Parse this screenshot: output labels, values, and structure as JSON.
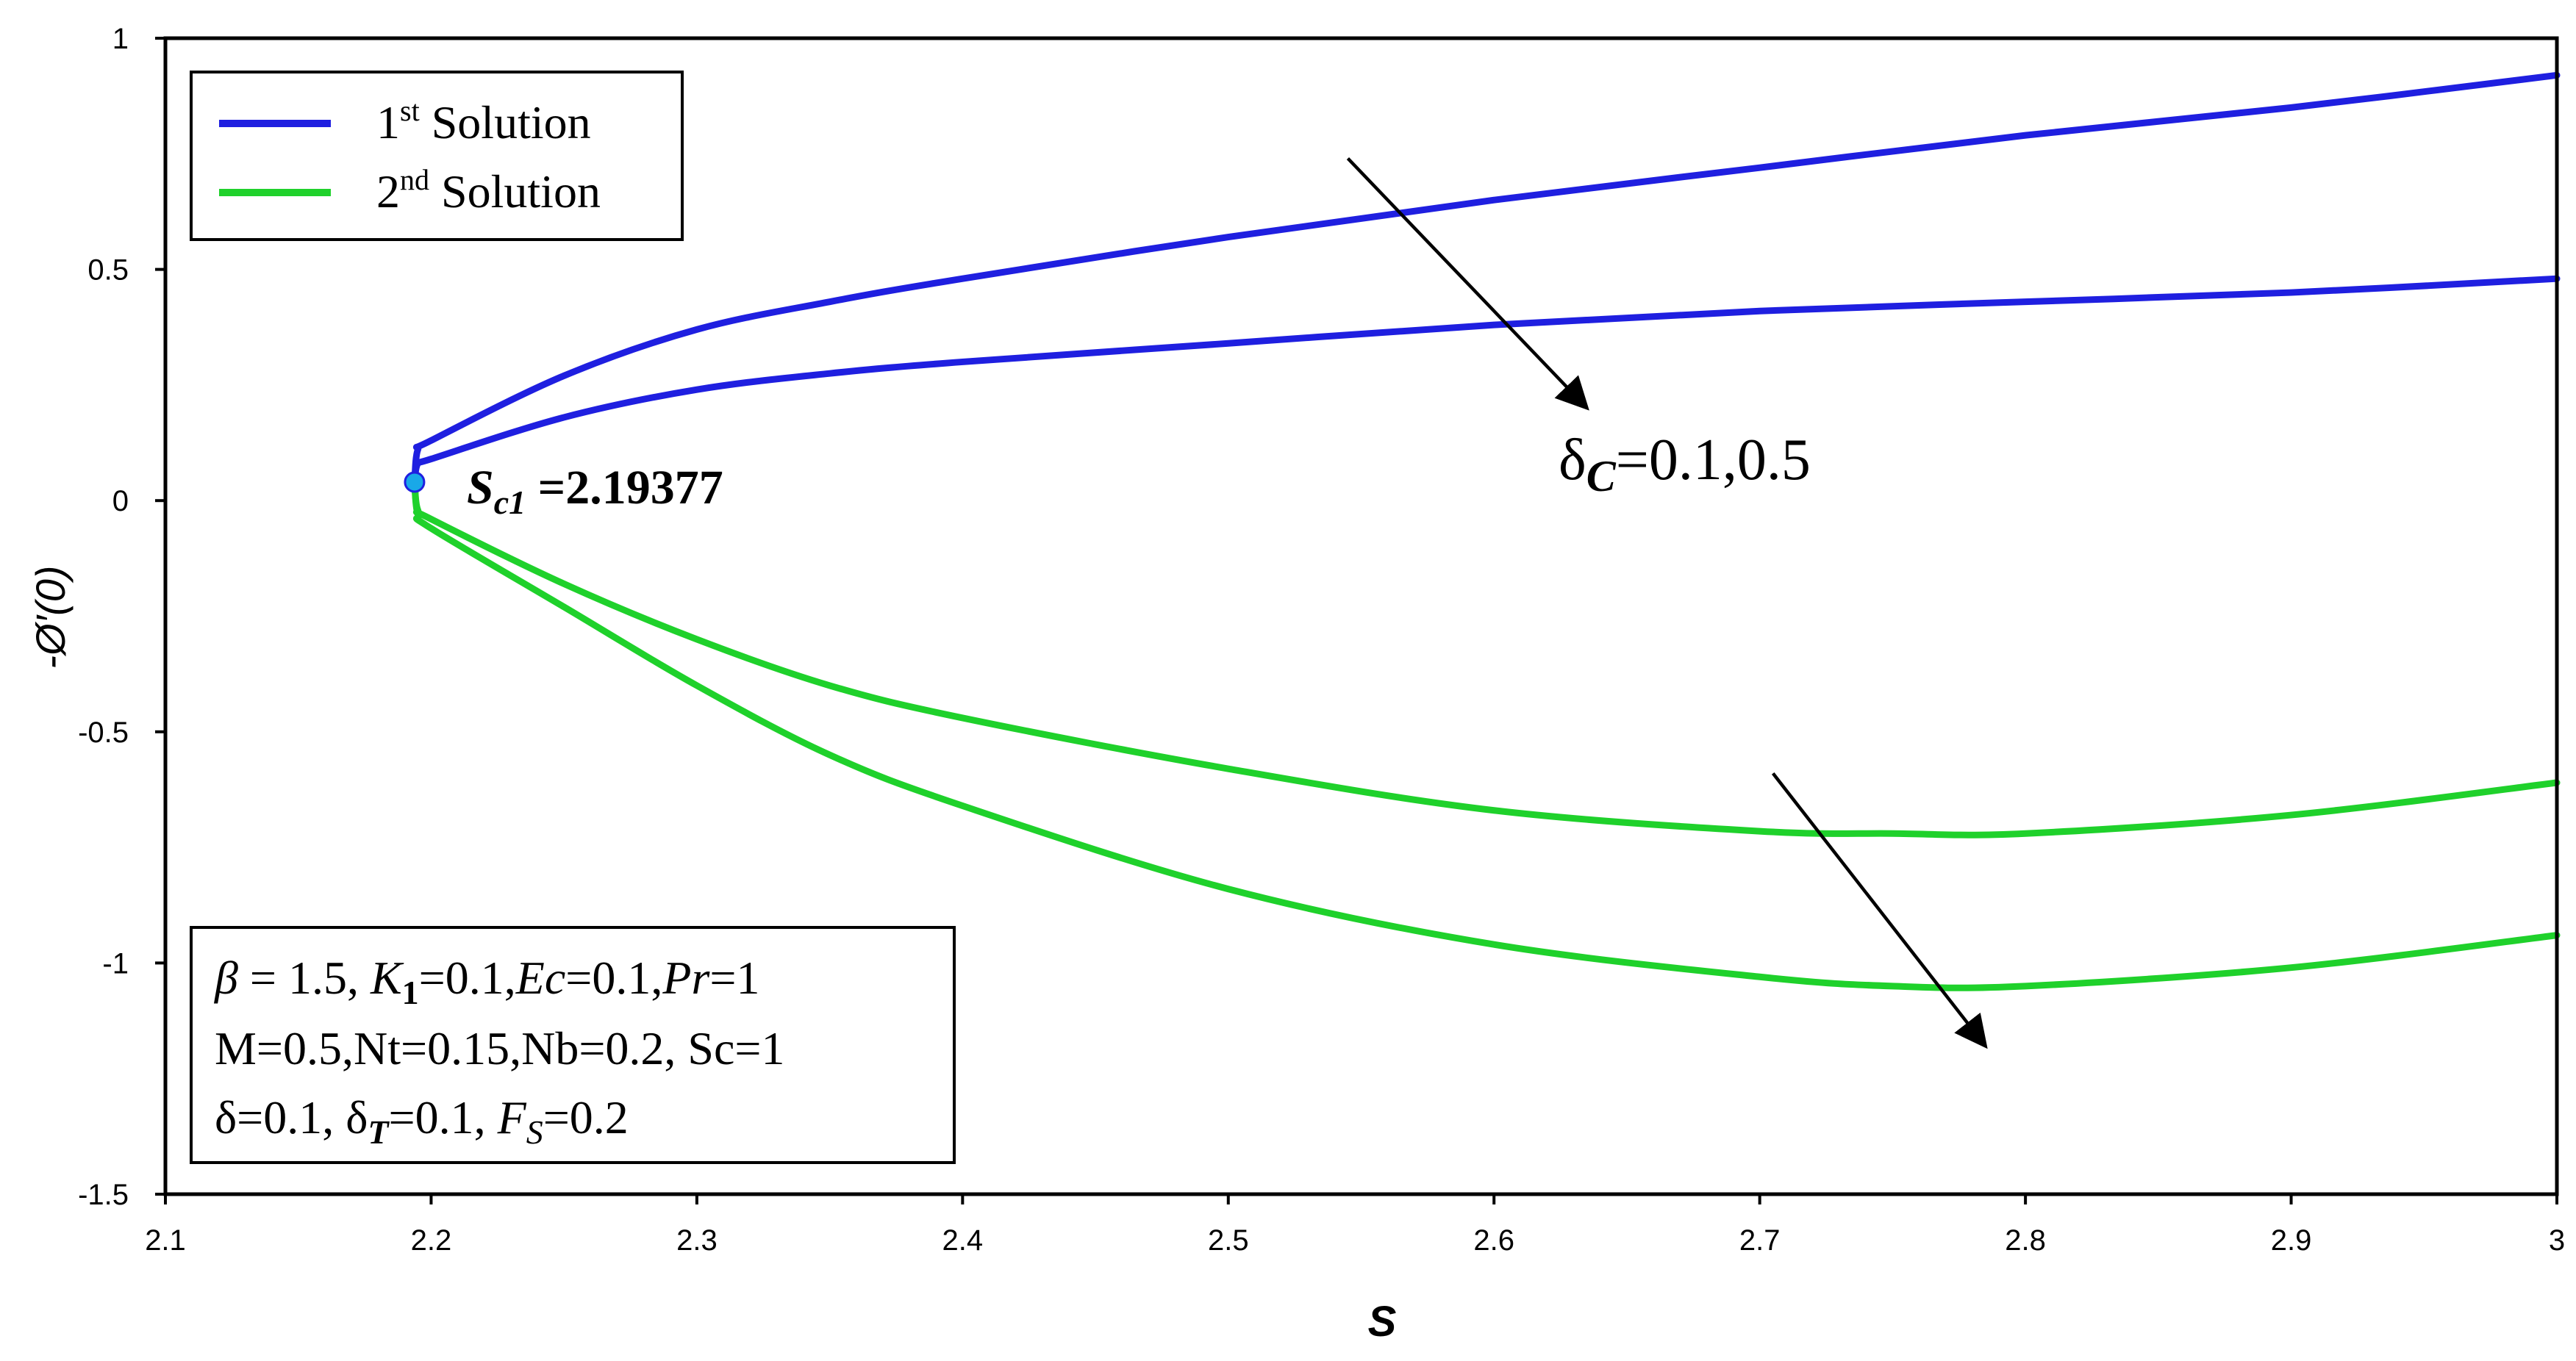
{
  "chart_data": {
    "type": "line",
    "title": "",
    "xlabel": "S",
    "ylabel": "-Ø′(0)",
    "xlim": [
      2.1,
      3.0
    ],
    "ylim": [
      -1.5,
      1.0
    ],
    "x_ticks": [
      "2.1",
      "2.2",
      "2.3",
      "2.4",
      "2.5",
      "2.6",
      "2.7",
      "2.8",
      "2.9",
      "3"
    ],
    "y_ticks": [
      "1",
      "0.5",
      "0",
      "-0.5",
      "-1",
      "-1.5"
    ],
    "grid": false,
    "legend_position": "top-left",
    "colors": {
      "first": "#1f1fe0",
      "second": "#1fd12b",
      "critical_point": "#19a8e8"
    },
    "legend": [
      {
        "base": "1",
        "sup": "st",
        "rest": " Solution",
        "color": "#1f1fe0"
      },
      {
        "base": "2",
        "sup": "nd",
        "rest": " Solution",
        "color": "#1fd12b"
      }
    ],
    "series": [
      {
        "solution": "1st",
        "delta_c": "0.1",
        "color": "#1f1fe0",
        "x": [
          2.19377,
          2.195,
          2.2,
          2.25,
          2.3,
          2.35,
          2.4,
          2.5,
          2.6,
          2.7,
          2.8,
          2.9,
          3.0
        ],
        "y": [
          0.04,
          0.11,
          0.13,
          0.27,
          0.37,
          0.43,
          0.48,
          0.57,
          0.65,
          0.72,
          0.79,
          0.85,
          0.92
        ]
      },
      {
        "solution": "1st",
        "delta_c": "0.5",
        "color": "#1f1fe0",
        "x": [
          2.19377,
          2.195,
          2.2,
          2.25,
          2.3,
          2.35,
          2.4,
          2.5,
          2.6,
          2.7,
          2.8,
          2.9,
          3.0
        ],
        "y": [
          0.04,
          0.08,
          0.09,
          0.18,
          0.24,
          0.275,
          0.3,
          0.34,
          0.38,
          0.41,
          0.43,
          0.45,
          0.48
        ]
      },
      {
        "solution": "2nd",
        "delta_c": "0.1",
        "color": "#1fd12b",
        "x": [
          2.19377,
          2.195,
          2.2,
          2.25,
          2.3,
          2.35,
          2.4,
          2.5,
          2.6,
          2.7,
          2.75,
          2.8,
          2.9,
          3.0
        ],
        "y": [
          0.04,
          -0.02,
          -0.04,
          -0.18,
          -0.3,
          -0.4,
          -0.47,
          -0.58,
          -0.67,
          -0.715,
          -0.72,
          -0.72,
          -0.68,
          -0.61
        ]
      },
      {
        "solution": "2nd",
        "delta_c": "0.5",
        "color": "#1fd12b",
        "x": [
          2.19377,
          2.195,
          2.2,
          2.25,
          2.3,
          2.35,
          2.4,
          2.5,
          2.6,
          2.7,
          2.75,
          2.8,
          2.9,
          3.0
        ],
        "y": [
          0.04,
          -0.03,
          -0.06,
          -0.23,
          -0.4,
          -0.55,
          -0.66,
          -0.84,
          -0.96,
          -1.03,
          -1.05,
          -1.05,
          -1.01,
          -0.94
        ]
      }
    ],
    "critical_point": {
      "x": 2.19377,
      "y": 0.04
    },
    "annotations": {
      "critical_label": {
        "s": "S",
        "sub": "c1",
        "value": " =2.19377"
      },
      "delta_c_label": {
        "prefix": "δ",
        "sub": "C",
        "value": "=0.1,0.5"
      },
      "arrows": [
        {
          "from": [
            2.545,
            0.74
          ],
          "to": [
            2.635,
            0.2
          ]
        },
        {
          "from": [
            2.705,
            -0.59
          ],
          "to": [
            2.785,
            -1.18
          ]
        }
      ]
    },
    "parameters": {
      "line1": {
        "beta": "β",
        "eq1": " = 1.5, ",
        "K": "K",
        "Ksub": "1",
        "eq2": "=0.1,",
        "Ec": "Ec",
        "eq3": "=0.1,",
        "Pr": "Pr",
        "eq4": "=1"
      },
      "line2": "M=0.5,Nt=0.15,Nb=0.2, Sc=1",
      "line3": {
        "a": "δ=0.1, δ",
        "Tsub": "T",
        "b": "=0.1, ",
        "F": "F",
        "Fsub": "S",
        "c": "=0.2"
      }
    }
  }
}
